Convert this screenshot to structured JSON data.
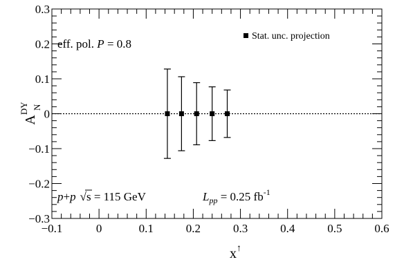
{
  "chart_data": {
    "type": "scatter",
    "title": "",
    "xlabel": "x",
    "xlabel_superscript": "↑",
    "ylabel": "A",
    "ylabel_superscript": "DY",
    "ylabel_subscript": "N",
    "xlim": [
      -0.1,
      0.6
    ],
    "ylim": [
      -0.3,
      0.3
    ],
    "xticks": [
      -0.1,
      0,
      0.1,
      0.2,
      0.3,
      0.4,
      0.5,
      0.6
    ],
    "xtick_labels": [
      "−0.1",
      "0",
      "0.1",
      "0.2",
      "0.3",
      "0.4",
      "0.5",
      "0.6"
    ],
    "yticks": [
      -0.3,
      -0.2,
      -0.1,
      0,
      0.1,
      0.2,
      0.3
    ],
    "ytick_labels": [
      "−0.3",
      "−0.2",
      "−0.1",
      "0",
      "0.1",
      "0.2",
      "0.3"
    ],
    "grid": false,
    "reference_line": {
      "y": 0,
      "style": "dotted"
    },
    "legend": {
      "position": "top-right",
      "entries": [
        "Stat. unc. projection"
      ]
    },
    "series": [
      {
        "name": "Stat. unc. projection",
        "x": [
          0.145,
          0.175,
          0.207,
          0.24,
          0.272
        ],
        "y": [
          0,
          0,
          0,
          0,
          0
        ],
        "yerr": [
          0.128,
          0.106,
          0.089,
          0.077,
          0.068
        ]
      }
    ],
    "annotations": {
      "polarization": {
        "prefix": "eff. pol. ",
        "symbol": "P",
        "suffix": " = 0.8"
      },
      "collision": {
        "p1": "p",
        "plus": "+",
        "p2": "p",
        "sqrt": "√",
        "s": "s",
        "energy": " = 115 GeV"
      },
      "luminosity": {
        "symbol": "L",
        "sub": "pp",
        "value": " = 0.25 fb",
        "sup": "-1"
      }
    }
  }
}
